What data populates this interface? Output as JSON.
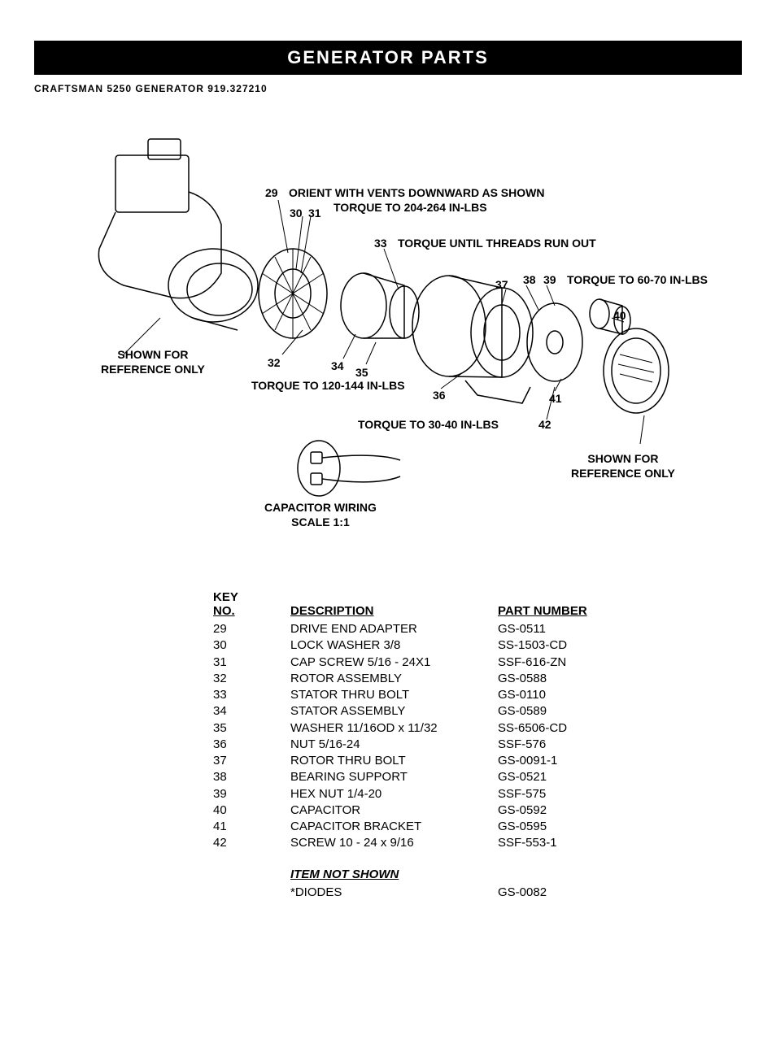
{
  "header": {
    "title": "GENERATOR  PARTS",
    "subtitle": "CRAFTSMAN 5250 GENERATOR 919.327210"
  },
  "diagram": {
    "callouts": {
      "ref_left_l1": "SHOWN FOR",
      "ref_left_l2": "REFERENCE ONLY",
      "ref_right_l1": "SHOWN FOR",
      "ref_right_l2": "REFERENCE ONLY",
      "orient_l1": "ORIENT WITH VENTS DOWNWARD AS SHOWN",
      "orient_l2": "TORQUE TO 204-264 IN-LBS",
      "torque_threads": "TORQUE UNTIL THREADS RUN OUT",
      "torque_6070": "TORQUE TO 60-70 IN-LBS",
      "torque_120144": "TORQUE TO 120-144 IN-LBS",
      "torque_3040": "TORQUE TO 30-40 IN-LBS",
      "capwire_l1": "CAPACITOR WIRING",
      "capwire_l2": "SCALE 1:1"
    },
    "numbers": {
      "n29": "29",
      "n30": "30",
      "n31": "31",
      "n32": "32",
      "n33": "33",
      "n34": "34",
      "n35": "35",
      "n36": "36",
      "n37": "37",
      "n38": "38",
      "n39": "39",
      "n40": "40",
      "n41": "41",
      "n42": "42"
    }
  },
  "table": {
    "headers": {
      "key_l1": "KEY",
      "key_l2": "NO.",
      "desc": "DESCRIPTION",
      "part": "PART NUMBER"
    },
    "rows": [
      {
        "key": "29",
        "desc": "DRIVE END ADAPTER",
        "part": "GS-0511"
      },
      {
        "key": "30",
        "desc": "LOCK WASHER 3/8",
        "part": "SS-1503-CD"
      },
      {
        "key": "31",
        "desc": "CAP SCREW 5/16 - 24X1",
        "part": "SSF-616-ZN"
      },
      {
        "key": "32",
        "desc": "ROTOR ASSEMBLY",
        "part": "GS-0588"
      },
      {
        "key": "33",
        "desc": "STATOR THRU BOLT",
        "part": "GS-0110"
      },
      {
        "key": "34",
        "desc": "STATOR ASSEMBLY",
        "part": "GS-0589"
      },
      {
        "key": "35",
        "desc": "WASHER 11/16OD x 11/32",
        "part": "SS-6506-CD"
      },
      {
        "key": "36",
        "desc": "NUT 5/16-24",
        "part": "SSF-576"
      },
      {
        "key": "37",
        "desc": "ROTOR THRU BOLT",
        "part": "GS-0091-1"
      },
      {
        "key": "38",
        "desc": "BEARING SUPPORT",
        "part": "GS-0521"
      },
      {
        "key": "39",
        "desc": "HEX NUT 1/4-20",
        "part": "SSF-575"
      },
      {
        "key": "40",
        "desc": "CAPACITOR",
        "part": "GS-0592"
      },
      {
        "key": "41",
        "desc": "CAPACITOR BRACKET",
        "part": "GS-0595"
      },
      {
        "key": "42",
        "desc": "SCREW 10 - 24 x 9/16",
        "part": "SSF-553-1"
      }
    ],
    "subheader": "ITEM NOT SHOWN",
    "extra_rows": [
      {
        "key": "",
        "desc": "*DIODES",
        "part": "GS-0082"
      }
    ]
  }
}
